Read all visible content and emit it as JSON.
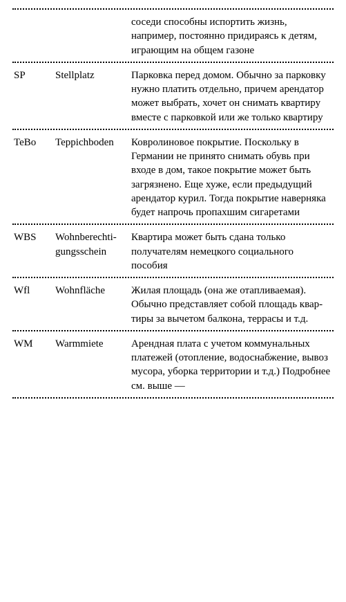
{
  "glossary": {
    "rows": [
      {
        "abbr": "",
        "term": "",
        "desc": "соседи способны испортить жизнь, например, постоянно придираясь к детям, играю­щим на общем газоне"
      },
      {
        "abbr": "SP",
        "term": "Stellplatz",
        "desc": "Парковка перед домом. Обыч­но за парковку нужно платить отдельно, причем арендатор может выбрать, хочет он сни­мать квартиру вместе с парков­кой или же только квартиру"
      },
      {
        "abbr": "TeBo",
        "term": "Teppich­boden",
        "desc": "Ковролиновое покрытие. По­скольку в Германии не при­нято снимать обувь при входе в дом, такое покрытие может быть загрязнено. Еще хуже, если предыдущий арендатор курил. Тогда покрытие навер­няка будет напрочь пропах­шим сигаретами"
      },
      {
        "abbr": "WBS",
        "term": "Wohnbe­rechti­gungsschein",
        "desc": "Квартира может быть сдана только получателям немецко­го социального пособия"
      },
      {
        "abbr": "Wfl",
        "term": "Wohnfläche",
        "desc": "Жилая площадь (она же отапливаемая). Обычно пред­ставляет собой площадь квар­тиры за вычетом балкона, террасы и т.д."
      },
      {
        "abbr": "WM",
        "term": "Warmmiete",
        "desc": "Арендная плата с учетом ком­мунальных платежей (отопле­ние, водоснабжение, вывоз мусора, уборка территории и т.д.) Подробнее см. выше —"
      }
    ]
  }
}
